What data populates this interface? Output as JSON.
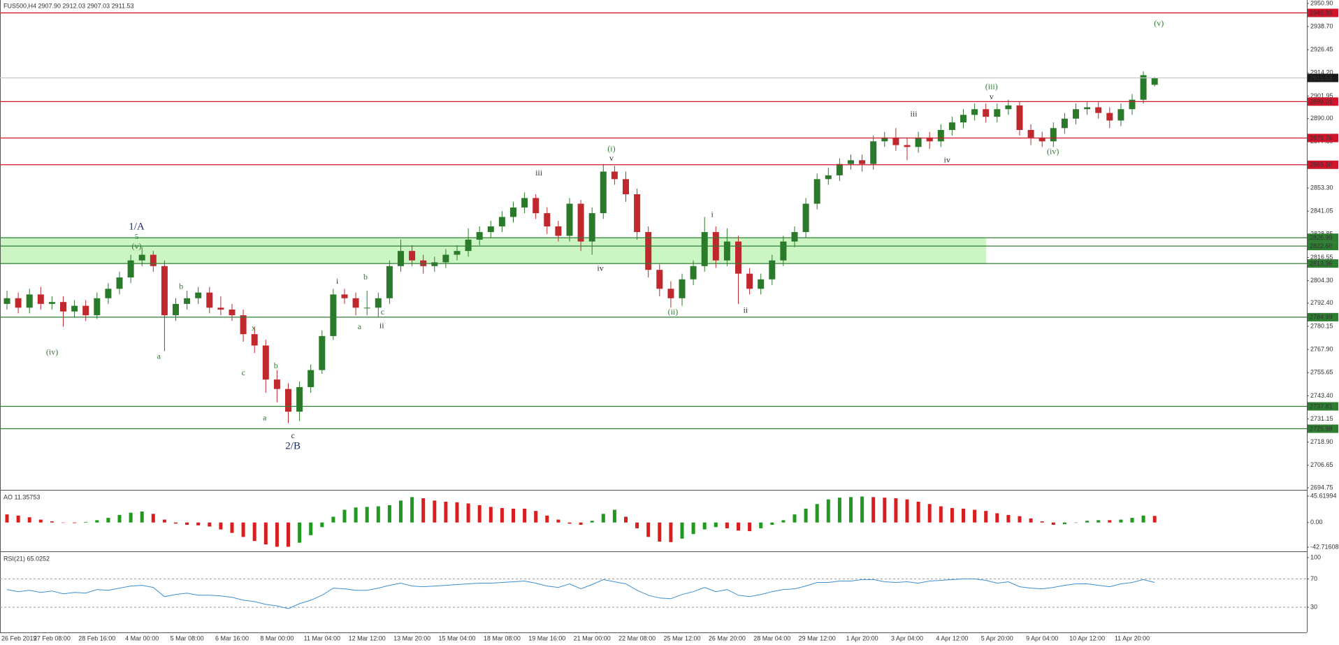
{
  "chart_data": [
    {
      "type": "candlestick",
      "title": "FUS500,H4  2907.90 2912.03 2907.03 2911.53",
      "categories": [
        "26 Feb 2019",
        null,
        null,
        null,
        "27 Feb 08:00",
        null,
        null,
        null,
        "28 Feb 16:00",
        null,
        null,
        null,
        "4 Mar 00:00",
        null,
        null,
        null,
        "5 Mar 08:00",
        null,
        null,
        null,
        "6 Mar 16:00",
        null,
        null,
        null,
        "8 Mar 00:00",
        null,
        null,
        null,
        "11 Mar 04:00",
        null,
        null,
        null,
        "12 Mar 12:00",
        null,
        null,
        null,
        "13 Mar 20:00",
        null,
        null,
        null,
        "15 Mar 04:00",
        null,
        null,
        null,
        "18 Mar 08:00",
        null,
        null,
        null,
        "19 Mar 16:00",
        null,
        null,
        null,
        "21 Mar 00:00",
        null,
        null,
        null,
        "22 Mar 08:00",
        null,
        null,
        null,
        "25 Mar 12:00",
        null,
        null,
        null,
        "26 Mar 20:00",
        null,
        null,
        null,
        "28 Mar 04:00",
        null,
        null,
        null,
        "29 Mar 12:00",
        null,
        null,
        null,
        "1 Apr 20:00",
        null,
        null,
        null,
        "3 Apr 04:00",
        null,
        null,
        null,
        "4 Apr 12:00",
        null,
        null,
        null,
        "5 Apr 20:00",
        null,
        null,
        null,
        "9 Apr 04:00",
        null,
        null,
        null,
        "10 Apr 12:00",
        null,
        null,
        null,
        "11 Apr 20:00",
        null,
        null
      ],
      "open": [
        2792,
        2795,
        2790,
        2797,
        2792,
        2793,
        2788,
        2791,
        2786,
        2795,
        2800,
        2806,
        2815,
        2818,
        2812,
        2786,
        2792,
        2795,
        2798,
        2790,
        2789,
        2786,
        2776,
        2770,
        2752,
        2747,
        2735,
        2748,
        2757,
        2775,
        2797,
        2795,
        2790,
        2790,
        2795,
        2812,
        2820,
        2815,
        2812,
        2814,
        2818,
        2820,
        2826,
        2830,
        2833,
        2838,
        2843,
        2848,
        2840,
        2833,
        2828,
        2845,
        2825,
        2840,
        2862,
        2858,
        2850,
        2830,
        2810,
        2800,
        2795,
        2805,
        2812,
        2830,
        2815,
        2825,
        2808,
        2800,
        2805,
        2815,
        2825,
        2830,
        2845,
        2858,
        2860,
        2866,
        2868,
        2866,
        2878,
        2880,
        2876,
        2875,
        2880,
        2878,
        2884,
        2888,
        2892,
        2895,
        2891,
        2895,
        2897,
        2884,
        2880,
        2878,
        2885,
        2890,
        2895,
        2896,
        2893,
        2889,
        2895,
        2900,
        2907.9
      ],
      "high": [
        2799,
        2798,
        2800,
        2801,
        2796,
        2796,
        2794,
        2794,
        2798,
        2803,
        2809,
        2818,
        2822,
        2820,
        2815,
        2795,
        2799,
        2801,
        2801,
        2796,
        2792,
        2789,
        2780,
        2773,
        2757,
        2750,
        2751,
        2760,
        2778,
        2800,
        2800,
        2798,
        2799,
        2798,
        2815,
        2826,
        2823,
        2818,
        2817,
        2821,
        2823,
        2832,
        2833,
        2836,
        2841,
        2846,
        2851,
        2850,
        2843,
        2836,
        2848,
        2847,
        2843,
        2866,
        2865,
        2862,
        2853,
        2833,
        2813,
        2804,
        2808,
        2815,
        2838,
        2833,
        2832,
        2828,
        2811,
        2808,
        2818,
        2828,
        2833,
        2848,
        2861,
        2864,
        2869,
        2871,
        2871,
        2881,
        2883,
        2885,
        2880,
        2883,
        2883,
        2887,
        2891,
        2895,
        2898,
        2898,
        2898,
        2900,
        2899,
        2887,
        2883,
        2888,
        2893,
        2898,
        2899,
        2899,
        2896,
        2898,
        2903,
        2915,
        2912.03
      ],
      "low": [
        2789,
        2787,
        2787,
        2789,
        2789,
        2780,
        2785,
        2783,
        2784,
        2792,
        2797,
        2803,
        2812,
        2809,
        2767,
        2783,
        2789,
        2792,
        2787,
        2786,
        2783,
        2772,
        2766,
        2745,
        2740,
        2729,
        2730,
        2745,
        2755,
        2773,
        2792,
        2786,
        2786,
        2785,
        2792,
        2809,
        2812,
        2808,
        2809,
        2811,
        2815,
        2817,
        2823,
        2827,
        2830,
        2835,
        2840,
        2837,
        2829,
        2825,
        2825,
        2820,
        2818,
        2837,
        2855,
        2846,
        2826,
        2806,
        2796,
        2790,
        2791,
        2802,
        2809,
        2811,
        2812,
        2792,
        2797,
        2797,
        2802,
        2812,
        2822,
        2827,
        2842,
        2855,
        2857,
        2863,
        2862,
        2863,
        2875,
        2873,
        2868,
        2872,
        2874,
        2875,
        2881,
        2885,
        2889,
        2888,
        2888,
        2892,
        2881,
        2876,
        2875,
        2875,
        2882,
        2887,
        2892,
        2890,
        2885,
        2886,
        2892,
        2898,
        2907.03
      ],
      "close": [
        2795,
        2790,
        2797,
        2792,
        2793,
        2788,
        2791,
        2786,
        2795,
        2800,
        2806,
        2815,
        2818,
        2812,
        2786,
        2792,
        2795,
        2798,
        2790,
        2789,
        2786,
        2776,
        2770,
        2752,
        2747,
        2735,
        2748,
        2757,
        2775,
        2797,
        2795,
        2790,
        2790,
        2795,
        2812,
        2820,
        2815,
        2812,
        2814,
        2818,
        2820,
        2826,
        2830,
        2833,
        2838,
        2843,
        2848,
        2840,
        2833,
        2828,
        2845,
        2825,
        2840,
        2862,
        2858,
        2850,
        2830,
        2810,
        2800,
        2795,
        2805,
        2812,
        2830,
        2815,
        2825,
        2808,
        2800,
        2805,
        2815,
        2825,
        2830,
        2845,
        2858,
        2860,
        2866,
        2868,
        2866,
        2878,
        2880,
        2876,
        2875,
        2880,
        2878,
        2884,
        2888,
        2892,
        2895,
        2891,
        2895,
        2897,
        2884,
        2880,
        2878,
        2885,
        2890,
        2895,
        2896,
        2893,
        2889,
        2895,
        2900,
        2913,
        2911.53
      ],
      "up_color": "#2b7a2b",
      "down_color": "#c0282d",
      "ylim": [
        2694.01,
        2952.75
      ],
      "yticks": [
        {
          "value": 2950.9,
          "label": "2950.90"
        },
        {
          "value": 2938.7,
          "label": "2938.70"
        },
        2926.45,
        {
          "value": 2914.2,
          "label": "2914.20"
        },
        2901.95,
        {
          "value": 2890,
          "label": "2890.00"
        },
        {
          "value": 2877.8,
          "label": "2877.80"
        },
        {
          "value": 2853.3,
          "label": "2853.30"
        },
        2841.05,
        2828.85,
        2816.55,
        {
          "value": 2804.3,
          "label": "2804.30"
        },
        {
          "value": 2792.4,
          "label": "2792.40"
        },
        2780.15,
        {
          "value": 2767.9,
          "label": "2767.90"
        },
        2755.65,
        {
          "value": 2743.4,
          "label": "2743.40"
        },
        2731.15,
        {
          "value": 2718.9,
          "label": "2718.90"
        },
        2706.65,
        2694.75
      ],
      "zones": [
        {
          "from": 2813.36,
          "to": 2826.99,
          "color": "#ccf5c4"
        }
      ],
      "levels": [
        {
          "value": 2945.93,
          "color": "#d0142c"
        },
        {
          "value": 2911.53,
          "color": "#c8c8c8",
          "box": "#1a1a1a"
        },
        {
          "value": 2899.01,
          "color": "#d0142c"
        },
        {
          "value": 2879.76,
          "color": "#d0142c"
        },
        {
          "value": 2865.6,
          "label": "2865.60",
          "color": "#d0142c"
        },
        {
          "value": 2826.99,
          "color": "#2e7d32"
        },
        {
          "value": 2822.6,
          "label": "2822.60",
          "color": "#2e7d32"
        },
        {
          "value": 2813.36,
          "color": "#2e7d32"
        },
        {
          "value": 2784.99,
          "color": "#2e7d32"
        },
        {
          "value": 2737.81,
          "color": "#2e7d32"
        },
        {
          "value": 2725.98,
          "color": "#2e7d32"
        }
      ],
      "annotations": [
        {
          "text": "1/A",
          "color": "#1c2a6b"
        },
        {
          "text": "5",
          "color": "#2e7d32"
        },
        {
          "text": "(v)",
          "color": "#2e7d32"
        },
        {
          "text": "(iv)",
          "color": "#2e7d32"
        },
        {
          "text": "a",
          "color": "#2e7d32"
        },
        {
          "text": "b",
          "color": "#2e7d32"
        },
        {
          "text": "x",
          "color": "#2e7d32"
        },
        {
          "text": "c",
          "color": "#2e7d32"
        },
        {
          "text": "b",
          "color": "#2e7d32"
        },
        {
          "text": "a",
          "color": "#2e7d32"
        },
        {
          "text": "c",
          "color": "#333333"
        },
        {
          "text": "2/B",
          "color": "#1c2a6b"
        },
        {
          "text": "i",
          "color": "#333333"
        },
        {
          "text": "b",
          "color": "#2e7d32"
        },
        {
          "text": "a",
          "color": "#2e7d32"
        },
        {
          "text": "c",
          "color": "#2e7d32"
        },
        {
          "text": "ii",
          "color": "#333333"
        },
        {
          "text": "iii",
          "color": "#333333"
        },
        {
          "text": "(i)",
          "color": "#2e7d32"
        },
        {
          "text": "v",
          "color": "#333333"
        },
        {
          "text": "iv",
          "color": "#333333"
        },
        {
          "text": "i",
          "color": "#333333"
        },
        {
          "text": "(ii)",
          "color": "#2e7d32"
        },
        {
          "text": "ii",
          "color": "#333333"
        },
        {
          "text": "iii",
          "color": "#333333"
        },
        {
          "text": "iv",
          "color": "#333333"
        },
        {
          "text": "(iii)",
          "color": "#2e7d32"
        },
        {
          "text": "v",
          "color": "#333333"
        },
        {
          "text": "(iv)",
          "color": "#2e7d32"
        },
        {
          "text": "(v)",
          "color": "#2e7d32"
        }
      ]
    },
    {
      "type": "bar",
      "title": "AO 11.35753",
      "values": [
        14,
        12,
        9,
        5,
        2,
        0,
        -1,
        1,
        4,
        8,
        13,
        17,
        19,
        15,
        5,
        -2,
        -4,
        -5,
        -7,
        -12,
        -18,
        -25,
        -32,
        -38,
        -42,
        -42,
        -35,
        -22,
        -8,
        10,
        22,
        26,
        27,
        28,
        30,
        38,
        44,
        42,
        38,
        36,
        35,
        33,
        30,
        27,
        25,
        24,
        24,
        20,
        12,
        5,
        -2,
        -4,
        3,
        15,
        22,
        10,
        -10,
        -25,
        -33,
        -34,
        -28,
        -20,
        -12,
        -8,
        -10,
        -14,
        -15,
        -10,
        -4,
        4,
        14,
        24,
        32,
        40,
        43,
        44,
        45,
        44,
        43,
        42,
        40,
        36,
        32,
        28,
        25,
        24,
        22,
        20,
        16,
        13,
        11,
        7,
        2,
        -4,
        -3,
        0,
        3,
        4,
        4,
        5,
        8,
        12,
        11.35753
      ],
      "up_color": "#1f9a1f",
      "down_color": "#d81e1e",
      "ylim": [
        -48.77,
        54.09
      ],
      "yticks": [
        45.61994,
        {
          "value": 0,
          "label": "0.00"
        },
        -42.71608
      ]
    },
    {
      "type": "line",
      "title": "RSI(21) 65.0252",
      "values": [
        55,
        52,
        54,
        51,
        53,
        49,
        51,
        50,
        55,
        54,
        57,
        60,
        61,
        58,
        45,
        48,
        50,
        47,
        47,
        46,
        44,
        40,
        38,
        34,
        32,
        28,
        35,
        40,
        47,
        57,
        56,
        54,
        54,
        57,
        61,
        64,
        60,
        59,
        60,
        61,
        62,
        63,
        64,
        64,
        65,
        66,
        67,
        64,
        60,
        58,
        63,
        56,
        62,
        69,
        66,
        63,
        54,
        47,
        43,
        42,
        48,
        52,
        58,
        52,
        55,
        47,
        45,
        48,
        52,
        55,
        56,
        60,
        65,
        65,
        67,
        67,
        69,
        69,
        66,
        65,
        66,
        64,
        67,
        68,
        69,
        70,
        70,
        68,
        64,
        66,
        59,
        57,
        56,
        58,
        61,
        63,
        63,
        61,
        59,
        63,
        65,
        69,
        65.0252
      ],
      "color": "#3d8fd1",
      "ylim": [
        -4.5,
        106.9
      ],
      "yticks": [
        100,
        70,
        30
      ],
      "levels": [
        70,
        30
      ]
    }
  ]
}
